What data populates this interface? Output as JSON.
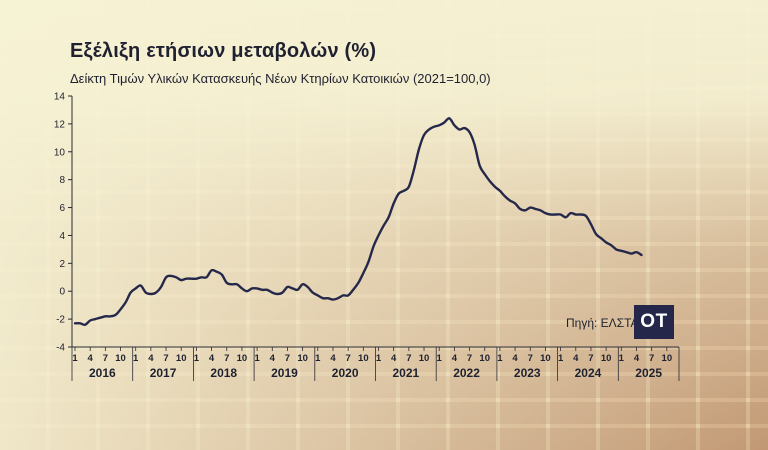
{
  "header": {
    "title": "Εξέλιξη ετήσιων μεταβολών (%)",
    "subtitle": "Δείκτη Τιμών Υλικών Κατασκευής Νέων Κτηρίων Κατοικιών (2021=100,0)"
  },
  "footer": {
    "source": "Πηγή: ΕΛΣΤΑΤ",
    "logo_text": "OT"
  },
  "colors": {
    "line": "#25284a",
    "axis": "#2a2a35",
    "text": "#1f2130"
  },
  "chart_data": {
    "type": "line",
    "title": "Εξέλιξη ετήσιων μεταβολών (%)",
    "subtitle": "Δείκτη Τιμών Υλικών Κατασκευής Νέων Κτηρίων Κατοικιών (2021=100,0)",
    "xlabel": "",
    "ylabel": "",
    "ylim": [
      -4,
      14
    ],
    "yticks": [
      -4,
      -2,
      0,
      2,
      4,
      6,
      8,
      10,
      12,
      14
    ],
    "ytick_labels": [
      "-4",
      "-2",
      "0",
      "2",
      "4",
      "6",
      "8",
      "10",
      "12",
      "14"
    ],
    "grid": false,
    "month_tick_labels": [
      "1",
      "4",
      "7",
      "10"
    ],
    "years": [
      "2016",
      "2017",
      "2018",
      "2019",
      "2020",
      "2021",
      "2022",
      "2023",
      "2024",
      "2025"
    ],
    "start_period": "2016-01",
    "series": [
      {
        "values": [
          -2.3,
          -2.3,
          -2.4,
          -2.1,
          -2.0,
          -1.9,
          -1.8,
          -1.8,
          -1.7,
          -1.3,
          -0.8,
          -0.1,
          0.2,
          0.4,
          -0.1,
          -0.2,
          -0.1,
          0.3,
          1.0,
          1.1,
          1.0,
          0.8,
          0.9,
          0.9,
          0.9,
          1.0,
          1.0,
          1.5,
          1.4,
          1.2,
          0.6,
          0.5,
          0.5,
          0.2,
          0.0,
          0.2,
          0.2,
          0.1,
          0.1,
          -0.1,
          -0.2,
          -0.1,
          0.3,
          0.2,
          0.1,
          0.5,
          0.3,
          -0.1,
          -0.3,
          -0.5,
          -0.5,
          -0.6,
          -0.5,
          -0.3,
          -0.3,
          0.1,
          0.6,
          1.3,
          2.1,
          3.2,
          4.0,
          4.7,
          5.3,
          6.3,
          7.0,
          7.2,
          7.5,
          8.7,
          10.2,
          11.2,
          11.6,
          11.8,
          11.9,
          12.1,
          12.4,
          11.9,
          11.6,
          11.7,
          11.4,
          10.5,
          9.0,
          8.4,
          7.9,
          7.5,
          7.2,
          6.8,
          6.5,
          6.3,
          5.9,
          5.8,
          6.0,
          5.9,
          5.8,
          5.6,
          5.5,
          5.5,
          5.5,
          5.3,
          5.6,
          5.5,
          5.5,
          5.4,
          4.8,
          4.1,
          3.8,
          3.5,
          3.3,
          3.0,
          2.9,
          2.8,
          2.7,
          2.8,
          2.6
        ]
      }
    ]
  }
}
